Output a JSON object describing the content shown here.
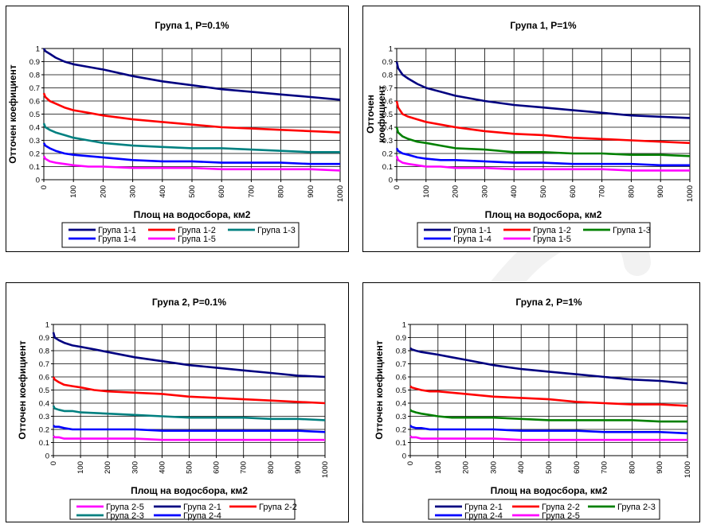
{
  "watermark_color": "#f2f2f2",
  "chart_data": [
    {
      "type": "line",
      "title": "Група 1, P=0.1%",
      "xlabel": "Площ на водосбора, км2",
      "ylabel": "Отточен коефициент",
      "xlim": [
        0,
        1000
      ],
      "ylim": [
        0,
        1
      ],
      "xticks": [
        "0",
        "100",
        "200",
        "300",
        "400",
        "500",
        "600",
        "700",
        "800",
        "900",
        "1000"
      ],
      "yticks": [
        "0",
        "0.1",
        "0.2",
        "0.3",
        "0.4",
        "0.5",
        "0.6",
        "0.7",
        "0.8",
        "0.9",
        "1"
      ],
      "grid": true,
      "legend_position": "bottom",
      "series": [
        {
          "name": "Група 1-1",
          "color": "#000080",
          "x": [
            0,
            5,
            20,
            40,
            70,
            100,
            150,
            200,
            300,
            400,
            500,
            600,
            700,
            800,
            900,
            1000
          ],
          "y": [
            1.0,
            0.98,
            0.96,
            0.93,
            0.9,
            0.88,
            0.86,
            0.84,
            0.79,
            0.75,
            0.72,
            0.69,
            0.67,
            0.65,
            0.63,
            0.61
          ]
        },
        {
          "name": "Група 1-2",
          "color": "#ff0000",
          "x": [
            0,
            5,
            20,
            40,
            70,
            100,
            150,
            200,
            300,
            400,
            500,
            600,
            700,
            800,
            900,
            1000
          ],
          "y": [
            0.66,
            0.63,
            0.6,
            0.58,
            0.55,
            0.53,
            0.51,
            0.49,
            0.46,
            0.44,
            0.42,
            0.4,
            0.39,
            0.38,
            0.37,
            0.36
          ]
        },
        {
          "name": "Група 1-3",
          "color": "#008080",
          "x": [
            0,
            5,
            20,
            40,
            70,
            100,
            150,
            200,
            300,
            400,
            500,
            600,
            700,
            800,
            900,
            1000
          ],
          "y": [
            0.43,
            0.4,
            0.38,
            0.36,
            0.34,
            0.32,
            0.3,
            0.28,
            0.26,
            0.25,
            0.24,
            0.24,
            0.23,
            0.22,
            0.21,
            0.21
          ]
        },
        {
          "name": "Група 1-4",
          "color": "#0000ff",
          "x": [
            0,
            5,
            20,
            40,
            70,
            100,
            150,
            200,
            300,
            400,
            500,
            600,
            700,
            800,
            900,
            1000
          ],
          "y": [
            0.28,
            0.26,
            0.24,
            0.22,
            0.2,
            0.19,
            0.18,
            0.17,
            0.15,
            0.14,
            0.14,
            0.13,
            0.13,
            0.13,
            0.12,
            0.12
          ]
        },
        {
          "name": "Група 1-5",
          "color": "#ff00ff",
          "x": [
            0,
            5,
            20,
            40,
            70,
            100,
            150,
            200,
            300,
            400,
            500,
            600,
            700,
            800,
            900,
            1000
          ],
          "y": [
            0.18,
            0.16,
            0.14,
            0.13,
            0.12,
            0.11,
            0.1,
            0.1,
            0.09,
            0.09,
            0.09,
            0.08,
            0.08,
            0.08,
            0.08,
            0.07
          ]
        }
      ]
    },
    {
      "type": "line",
      "title": "Група 1, P=1%",
      "xlabel": "Площ на водосбора, км2",
      "ylabel": "Отточен коефициент",
      "xlim": [
        0,
        1000
      ],
      "ylim": [
        0,
        1
      ],
      "xticks": [
        "0",
        "100",
        "200",
        "300",
        "400",
        "500",
        "600",
        "700",
        "800",
        "900",
        "1000"
      ],
      "yticks": [
        "0",
        "0.1",
        "0.2",
        "0.3",
        "0.4",
        "0.5",
        "0.6",
        "0.7",
        "0.8",
        "0.9",
        "1"
      ],
      "grid": true,
      "legend_position": "bottom",
      "series": [
        {
          "name": "Група 1-1",
          "color": "#000080",
          "x": [
            0,
            5,
            20,
            40,
            70,
            100,
            150,
            200,
            300,
            400,
            500,
            600,
            700,
            800,
            900,
            1000
          ],
          "y": [
            0.9,
            0.85,
            0.8,
            0.77,
            0.73,
            0.7,
            0.67,
            0.64,
            0.6,
            0.57,
            0.55,
            0.53,
            0.51,
            0.49,
            0.48,
            0.47
          ]
        },
        {
          "name": "Група 1-2",
          "color": "#ff0000",
          "x": [
            0,
            5,
            20,
            40,
            70,
            100,
            150,
            200,
            300,
            400,
            500,
            600,
            700,
            800,
            900,
            1000
          ],
          "y": [
            0.6,
            0.55,
            0.5,
            0.48,
            0.46,
            0.44,
            0.42,
            0.4,
            0.37,
            0.35,
            0.34,
            0.32,
            0.31,
            0.3,
            0.29,
            0.28
          ]
        },
        {
          "name": "Група 1-3",
          "color": "#008000",
          "x": [
            0,
            5,
            20,
            40,
            70,
            100,
            150,
            200,
            300,
            400,
            500,
            600,
            700,
            800,
            900,
            1000
          ],
          "y": [
            0.4,
            0.36,
            0.33,
            0.31,
            0.29,
            0.28,
            0.26,
            0.24,
            0.23,
            0.21,
            0.21,
            0.2,
            0.2,
            0.19,
            0.19,
            0.18
          ]
        },
        {
          "name": "Група 1-4",
          "color": "#0000ff",
          "x": [
            0,
            5,
            20,
            40,
            70,
            100,
            150,
            200,
            300,
            400,
            500,
            600,
            700,
            800,
            900,
            1000
          ],
          "y": [
            0.24,
            0.22,
            0.2,
            0.19,
            0.17,
            0.16,
            0.15,
            0.15,
            0.14,
            0.13,
            0.13,
            0.12,
            0.12,
            0.12,
            0.11,
            0.11
          ]
        },
        {
          "name": "Група 1-5",
          "color": "#ff00ff",
          "x": [
            0,
            5,
            20,
            40,
            70,
            100,
            150,
            200,
            300,
            400,
            500,
            600,
            700,
            800,
            900,
            1000
          ],
          "y": [
            0.18,
            0.15,
            0.13,
            0.12,
            0.11,
            0.1,
            0.1,
            0.09,
            0.09,
            0.08,
            0.08,
            0.08,
            0.08,
            0.07,
            0.07,
            0.07
          ]
        }
      ]
    },
    {
      "type": "line",
      "title": "Група 2, P=0.1%",
      "xlabel": "Площ на водосбора, км2",
      "ylabel": "Отточен коефициент",
      "xlim": [
        0,
        1000
      ],
      "ylim": [
        0,
        1
      ],
      "xticks": [
        "0",
        "100",
        "200",
        "300",
        "400",
        "500",
        "600",
        "700",
        "800",
        "900",
        "1000"
      ],
      "yticks": [
        "0",
        "0.1",
        "0.2",
        "0.3",
        "0.4",
        "0.5",
        "0.6",
        "0.7",
        "0.8",
        "0.9",
        "1"
      ],
      "grid": true,
      "legend_position": "bottom",
      "series": [
        {
          "name": "Група 2-5",
          "color": "#ff00ff",
          "x": [
            0,
            5,
            20,
            40,
            70,
            100,
            200,
            300,
            400,
            500,
            600,
            700,
            800,
            900,
            1000
          ],
          "y": [
            0.15,
            0.14,
            0.14,
            0.13,
            0.13,
            0.13,
            0.13,
            0.13,
            0.12,
            0.12,
            0.12,
            0.12,
            0.12,
            0.12,
            0.12
          ]
        },
        {
          "name": "Група 2-1",
          "color": "#000080",
          "x": [
            0,
            5,
            20,
            40,
            70,
            100,
            150,
            200,
            300,
            400,
            500,
            600,
            700,
            800,
            900,
            1000
          ],
          "y": [
            0.94,
            0.9,
            0.88,
            0.86,
            0.84,
            0.83,
            0.81,
            0.79,
            0.75,
            0.72,
            0.69,
            0.67,
            0.65,
            0.63,
            0.61,
            0.6
          ]
        },
        {
          "name": "Група 2-2",
          "color": "#ff0000",
          "x": [
            0,
            5,
            20,
            40,
            70,
            100,
            150,
            200,
            300,
            400,
            500,
            600,
            700,
            800,
            900,
            1000
          ],
          "y": [
            0.6,
            0.58,
            0.56,
            0.54,
            0.53,
            0.52,
            0.5,
            0.49,
            0.48,
            0.47,
            0.45,
            0.44,
            0.43,
            0.42,
            0.41,
            0.4
          ]
        },
        {
          "name": "Група 2-3",
          "color": "#008080",
          "x": [
            0,
            5,
            20,
            40,
            70,
            100,
            200,
            300,
            400,
            500,
            600,
            700,
            800,
            900,
            1000
          ],
          "y": [
            0.38,
            0.36,
            0.35,
            0.34,
            0.34,
            0.33,
            0.32,
            0.31,
            0.3,
            0.29,
            0.29,
            0.29,
            0.28,
            0.28,
            0.27
          ]
        },
        {
          "name": "Група 2-4",
          "color": "#0000ff",
          "x": [
            0,
            5,
            20,
            40,
            70,
            100,
            200,
            300,
            400,
            500,
            600,
            700,
            800,
            900,
            1000
          ],
          "y": [
            0.23,
            0.22,
            0.22,
            0.21,
            0.2,
            0.2,
            0.2,
            0.2,
            0.19,
            0.19,
            0.19,
            0.19,
            0.19,
            0.19,
            0.18
          ]
        }
      ]
    },
    {
      "type": "line",
      "title": "Група 2, P=1%",
      "xlabel": "Площ на водосбора, км2",
      "ylabel": "Отточен коефициент",
      "xlim": [
        0,
        1000
      ],
      "ylim": [
        0,
        1
      ],
      "xticks": [
        "0",
        "100",
        "200",
        "300",
        "400",
        "500",
        "600",
        "700",
        "800",
        "900",
        "1000"
      ],
      "yticks": [
        "0",
        "0.1",
        "0.2",
        "0.3",
        "0.4",
        "0.5",
        "0.6",
        "0.7",
        "0.8",
        "0.9",
        "1"
      ],
      "grid": true,
      "legend_position": "bottom",
      "series": [
        {
          "name": "Група 2-1",
          "color": "#000080",
          "x": [
            0,
            5,
            20,
            40,
            70,
            100,
            150,
            200,
            300,
            400,
            500,
            600,
            700,
            800,
            900,
            1000
          ],
          "y": [
            0.82,
            0.81,
            0.8,
            0.79,
            0.78,
            0.77,
            0.75,
            0.73,
            0.69,
            0.66,
            0.64,
            0.62,
            0.6,
            0.58,
            0.57,
            0.55
          ]
        },
        {
          "name": "Група 2-2",
          "color": "#ff0000",
          "x": [
            0,
            5,
            20,
            40,
            70,
            100,
            150,
            200,
            300,
            400,
            500,
            600,
            700,
            800,
            900,
            1000
          ],
          "y": [
            0.53,
            0.52,
            0.51,
            0.5,
            0.49,
            0.49,
            0.48,
            0.47,
            0.45,
            0.44,
            0.43,
            0.41,
            0.4,
            0.39,
            0.39,
            0.38
          ]
        },
        {
          "name": "Група 2-3",
          "color": "#008000",
          "x": [
            0,
            5,
            20,
            40,
            70,
            100,
            150,
            200,
            300,
            400,
            500,
            600,
            700,
            800,
            900,
            1000
          ],
          "y": [
            0.35,
            0.34,
            0.33,
            0.32,
            0.31,
            0.3,
            0.29,
            0.29,
            0.29,
            0.28,
            0.27,
            0.27,
            0.27,
            0.27,
            0.26,
            0.26
          ]
        },
        {
          "name": "Група 2-4",
          "color": "#0000ff",
          "x": [
            0,
            5,
            20,
            40,
            70,
            100,
            200,
            300,
            400,
            500,
            600,
            700,
            800,
            900,
            1000
          ],
          "y": [
            0.23,
            0.22,
            0.21,
            0.21,
            0.2,
            0.2,
            0.2,
            0.2,
            0.19,
            0.19,
            0.19,
            0.18,
            0.18,
            0.18,
            0.17
          ]
        },
        {
          "name": "Група 2-5",
          "color": "#ff00ff",
          "x": [
            0,
            5,
            20,
            40,
            70,
            100,
            200,
            300,
            400,
            500,
            600,
            700,
            800,
            900,
            1000
          ],
          "y": [
            0.15,
            0.14,
            0.14,
            0.13,
            0.13,
            0.13,
            0.13,
            0.13,
            0.12,
            0.12,
            0.12,
            0.12,
            0.12,
            0.12,
            0.12
          ]
        }
      ]
    }
  ]
}
